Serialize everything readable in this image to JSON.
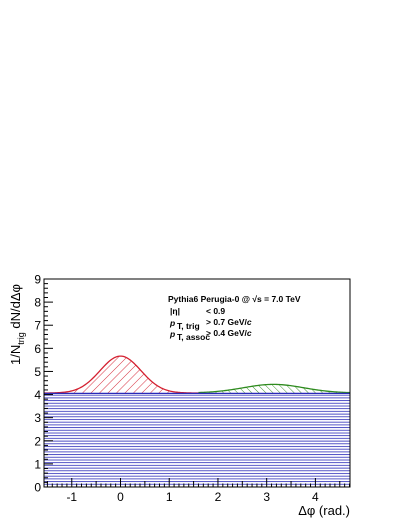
{
  "chart_data": {
    "type": "area",
    "xlabel": "Δφ (rad.)",
    "ylabel_parts": {
      "prefix": "1/N",
      "sub": "trig",
      "suffix": " dN/dΔφ"
    },
    "xlim": [
      -1.57,
      4.71
    ],
    "ylim": [
      0,
      9
    ],
    "xticks": [
      -1,
      0,
      1,
      2,
      3,
      4
    ],
    "yticks": [
      0,
      1,
      2,
      3,
      4,
      5,
      6,
      7,
      8,
      9
    ],
    "pedestal": 4.05,
    "near_side_peak": {
      "x": 0,
      "y": 5.65,
      "sigma": 0.42
    },
    "away_side_peak": {
      "x": 3.14,
      "y": 4.42,
      "sigma": 0.62
    },
    "series": [
      {
        "color": "#d42030",
        "hatch": "diagonal",
        "x": [
          -1.57,
          -1,
          -0.5,
          0,
          0.5,
          1,
          1.5
        ],
        "y": [
          4.05,
          4.1,
          4.85,
          5.65,
          4.85,
          4.1,
          4.05
        ]
      },
      {
        "color": "#2e8b1e",
        "hatch": "diagonal",
        "x": [
          1.5,
          2.0,
          2.5,
          3.14,
          3.8,
          4.3,
          4.71
        ],
        "y": [
          4.05,
          4.09,
          4.26,
          4.42,
          4.26,
          4.12,
          4.08
        ]
      },
      {
        "color": "#2a2ab8",
        "hatch": "horizontal",
        "x": [
          -1.57,
          4.71
        ],
        "y": [
          4.05,
          4.05
        ]
      }
    ],
    "annotation": {
      "generator": "Pythia6 Perugia-0 @ ",
      "energy": "√s = 7.0 TeV",
      "eta_label": "|η|",
      "eta_cut": "<  0.9",
      "pt_symbol": "p",
      "pt_trig_sub": "T, trig",
      "pt_trig_cut": ">  0.7 GeV/",
      "pt_assoc_sub": "T, assoc",
      "pt_assoc_cut": ">  0.4 GeV/",
      "c": "c"
    }
  },
  "colors": {
    "near_side": "#d42030",
    "away_side": "#2e8b1e",
    "pedestal": "#2a2ab8",
    "axes": "#000000"
  }
}
